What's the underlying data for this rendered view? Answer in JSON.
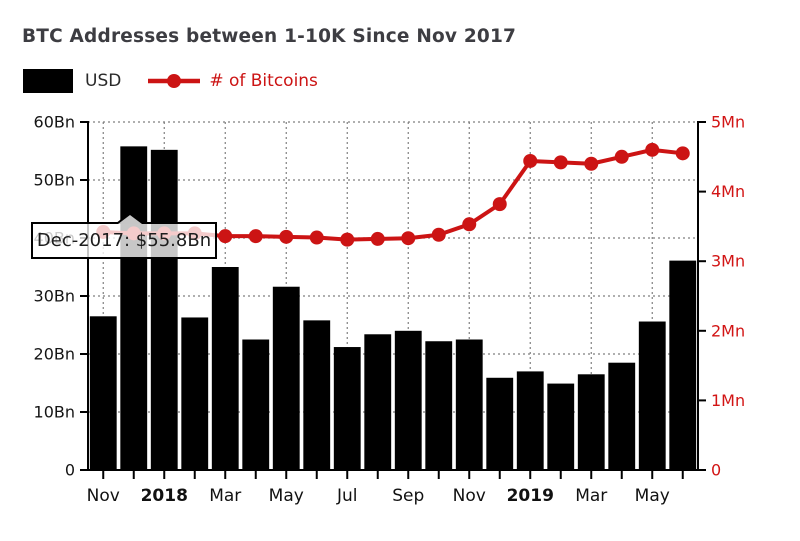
{
  "tooltip": {
    "text": "Dec-2017: $55.8Bn"
  },
  "chart_data": {
    "type": "bar",
    "title": "BTC Addresses between 1-10K Since Nov 2017",
    "x": [
      "Nov-2017",
      "Dec-2017",
      "Jan-2018",
      "Feb-2018",
      "Mar-2018",
      "Apr-2018",
      "May-2018",
      "Jun-2018",
      "Jul-2018",
      "Aug-2018",
      "Sep-2018",
      "Oct-2018",
      "Nov-2018",
      "Dec-2018",
      "Jan-2019",
      "Feb-2019",
      "Mar-2019",
      "Apr-2019",
      "May-2019",
      "Jun-2019"
    ],
    "x_tick_labels": [
      {
        "index": 0,
        "label": "Nov",
        "bold": false
      },
      {
        "index": 2,
        "label": "2018",
        "bold": true
      },
      {
        "index": 4,
        "label": "Mar",
        "bold": false
      },
      {
        "index": 6,
        "label": "May",
        "bold": false
      },
      {
        "index": 8,
        "label": "Jul",
        "bold": false
      },
      {
        "index": 10,
        "label": "Sep",
        "bold": false
      },
      {
        "index": 12,
        "label": "Nov",
        "bold": false
      },
      {
        "index": 14,
        "label": "2019",
        "bold": true
      },
      {
        "index": 16,
        "label": "Mar",
        "bold": false
      },
      {
        "index": 18,
        "label": "May",
        "bold": false
      }
    ],
    "series": [
      {
        "name": "USD",
        "type": "bar",
        "axis": "left",
        "unit": "Bn",
        "color": "#000000",
        "values": [
          26.5,
          55.8,
          55.2,
          26.3,
          35.0,
          22.5,
          31.6,
          25.8,
          21.2,
          23.4,
          24.0,
          22.2,
          22.5,
          15.9,
          17.0,
          14.9,
          16.5,
          18.5,
          25.6,
          36.1
        ]
      },
      {
        "name": "# of Bitcoins",
        "type": "line",
        "axis": "right",
        "unit": "Mn",
        "color": "#cc1414",
        "values": [
          3.42,
          3.4,
          3.4,
          3.4,
          3.36,
          3.36,
          3.35,
          3.34,
          3.31,
          3.32,
          3.33,
          3.38,
          3.53,
          3.82,
          4.44,
          4.42,
          4.4,
          4.5,
          4.6,
          4.55
        ]
      }
    ],
    "left_axis": {
      "range": [
        0,
        60
      ],
      "ticks": [
        {
          "value": 0,
          "label": "0"
        },
        {
          "value": 10,
          "label": "10Bn"
        },
        {
          "value": 20,
          "label": "20Bn"
        },
        {
          "value": 30,
          "label": "30Bn"
        },
        {
          "value": 40,
          "label": "40Bn"
        },
        {
          "value": 50,
          "label": "50Bn"
        },
        {
          "value": 60,
          "label": "60Bn"
        }
      ],
      "label_color": "#151515"
    },
    "right_axis": {
      "range": [
        0,
        5
      ],
      "ticks": [
        {
          "value": 0,
          "label": "0"
        },
        {
          "value": 1,
          "label": "1Mn"
        },
        {
          "value": 2,
          "label": "2Mn"
        },
        {
          "value": 3,
          "label": "3Mn"
        },
        {
          "value": 4,
          "label": "4Mn"
        },
        {
          "value": 5,
          "label": "5Mn"
        }
      ],
      "label_color": "#d21414"
    },
    "grid": true,
    "grid_color": "#7f7f7f",
    "axis_color": "#000000",
    "legend_position": "top-left"
  }
}
